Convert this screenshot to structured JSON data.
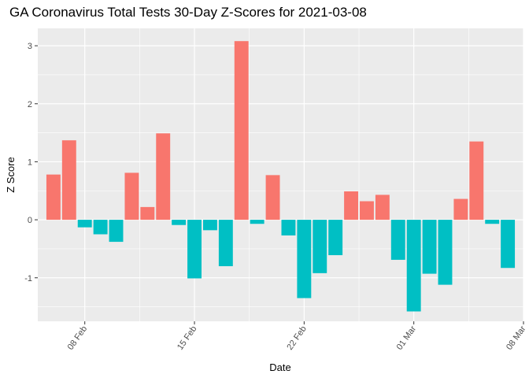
{
  "chart_data": {
    "type": "bar",
    "title": "GA Coronavirus Total Tests 30-Day Z-Scores for 2021-03-08",
    "xlabel": "Date",
    "ylabel": "Z Score",
    "x_tick_labels": [
      "08 Feb",
      "15 Feb",
      "22 Feb",
      "01 Mar",
      "08 Mar"
    ],
    "x_tick_dates": [
      "2021-02-08",
      "2021-02-15",
      "2021-02-22",
      "2021-03-01",
      "2021-03-08"
    ],
    "y_ticks": [
      -1,
      0,
      1,
      2,
      3
    ],
    "ylim": [
      -1.75,
      3.3
    ],
    "xlim": [
      "2021-02-05",
      "2021-03-08"
    ],
    "grid": true,
    "positive_color": "#F8766D",
    "negative_color": "#00BFC4",
    "dates": [
      "2021-02-06",
      "2021-02-07",
      "2021-02-08",
      "2021-02-09",
      "2021-02-10",
      "2021-02-11",
      "2021-02-12",
      "2021-02-13",
      "2021-02-14",
      "2021-02-15",
      "2021-02-16",
      "2021-02-17",
      "2021-02-18",
      "2021-02-19",
      "2021-02-20",
      "2021-02-21",
      "2021-02-22",
      "2021-02-23",
      "2021-02-24",
      "2021-02-25",
      "2021-02-26",
      "2021-02-27",
      "2021-02-28",
      "2021-03-01",
      "2021-03-02",
      "2021-03-03",
      "2021-03-04",
      "2021-03-05",
      "2021-03-06",
      "2021-03-07"
    ],
    "values": [
      0.78,
      1.37,
      -0.13,
      -0.25,
      -0.38,
      0.81,
      0.22,
      1.49,
      -0.09,
      -1.01,
      -0.18,
      -0.8,
      3.08,
      -0.07,
      0.77,
      -0.27,
      -1.35,
      -0.92,
      -0.61,
      0.49,
      0.32,
      0.43,
      -0.69,
      -1.58,
      -0.93,
      -1.12,
      0.36,
      1.35,
      -0.07,
      -0.83
    ]
  }
}
